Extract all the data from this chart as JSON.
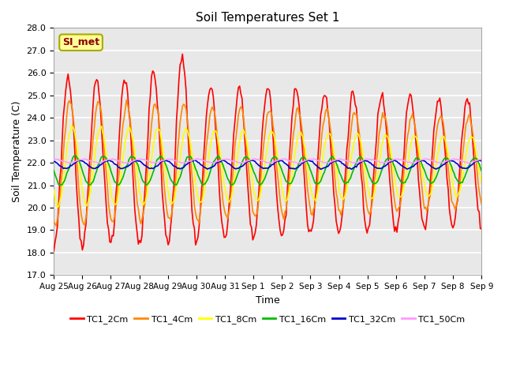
{
  "title": "Soil Temperatures Set 1",
  "xlabel": "Time",
  "ylabel": "Soil Temperature (C)",
  "ylim": [
    17.0,
    28.0
  ],
  "yticks": [
    17.0,
    18.0,
    19.0,
    20.0,
    21.0,
    22.0,
    23.0,
    24.0,
    25.0,
    26.0,
    27.0,
    28.0
  ],
  "x_labels": [
    "Aug 25",
    "Aug 26",
    "Aug 27",
    "Aug 28",
    "Aug 29",
    "Aug 30",
    "Aug 31",
    "Sep 1",
    "Sep 2",
    "Sep 3",
    "Sep 4",
    "Sep 5",
    "Sep 6",
    "Sep 7",
    "Sep 8",
    "Sep 9"
  ],
  "annotation_text": "SI_met",
  "series_colors": [
    "#ff0000",
    "#ff8800",
    "#ffff00",
    "#00bb00",
    "#0000cc",
    "#ff99ff"
  ],
  "series_names": [
    "TC1_2Cm",
    "TC1_4Cm",
    "TC1_8Cm",
    "TC1_16Cm",
    "TC1_32Cm",
    "TC1_50Cm"
  ],
  "background_color": "#e8e8e8",
  "grid_color": "#ffffff",
  "base_temp": 22.0,
  "days": 15,
  "n_points": 360,
  "amplitudes_start": [
    3.8,
    2.8,
    1.8,
    0.65,
    0.18,
    0.08
  ],
  "amplitudes_end": [
    2.8,
    2.0,
    1.3,
    0.55,
    0.18,
    0.08
  ],
  "phase_shifts_hours": [
    0.0,
    1.5,
    3.5,
    6.0,
    10.0,
    13.0
  ],
  "mean_offsets": [
    0.0,
    0.0,
    -0.15,
    -0.35,
    -0.08,
    0.08
  ],
  "extra_peaks": {
    "day4_amp": 1.3,
    "day3_amp": 0.5
  }
}
